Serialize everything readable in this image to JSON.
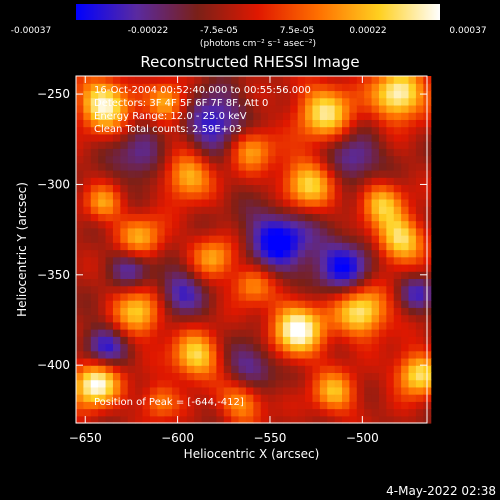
{
  "chart_data": {
    "type": "heatmap",
    "title": "Reconstructed RHESSI Image",
    "xlabel": "Heliocentric X (arcsec)",
    "ylabel": "Heliocentric Y (arcsec)",
    "xlim": [
      -655,
      -465
    ],
    "ylim": [
      -432,
      -240
    ],
    "x_ticks": [
      -650,
      -600,
      -550,
      -500
    ],
    "y_ticks": [
      -250,
      -300,
      -350,
      -400
    ],
    "colorbar": {
      "min": -0.00037,
      "max": 0.00037,
      "tick_labels": [
        "-0.00037",
        "-0.00022",
        "-7.5e-05",
        "7.5e-05",
        "0.00022",
        "0.00037"
      ],
      "unit_label": "(photons cm⁻² s⁻¹ asec⁻²)",
      "colormap": [
        "#0000ff",
        "#5a2aa0",
        "#7a2018",
        "#e01800",
        "#ff7000",
        "#ffd020",
        "#ffffff"
      ]
    },
    "annotations": [
      "16-Oct-2004 00:52:40.000 to 00:55:56.000",
      "Detectors: 3F 4F 5F 6F 7F 8F, Att 0",
      "Energy Range: 12.0 - 25.0 keV",
      "Clean    Total counts: 2.59E+03"
    ],
    "peak_label": "Position of Peak = [-644,-412]",
    "peak": [
      -644,
      -412
    ],
    "grid": false
  },
  "footer": {
    "date": "4-May-2022 02:38"
  }
}
